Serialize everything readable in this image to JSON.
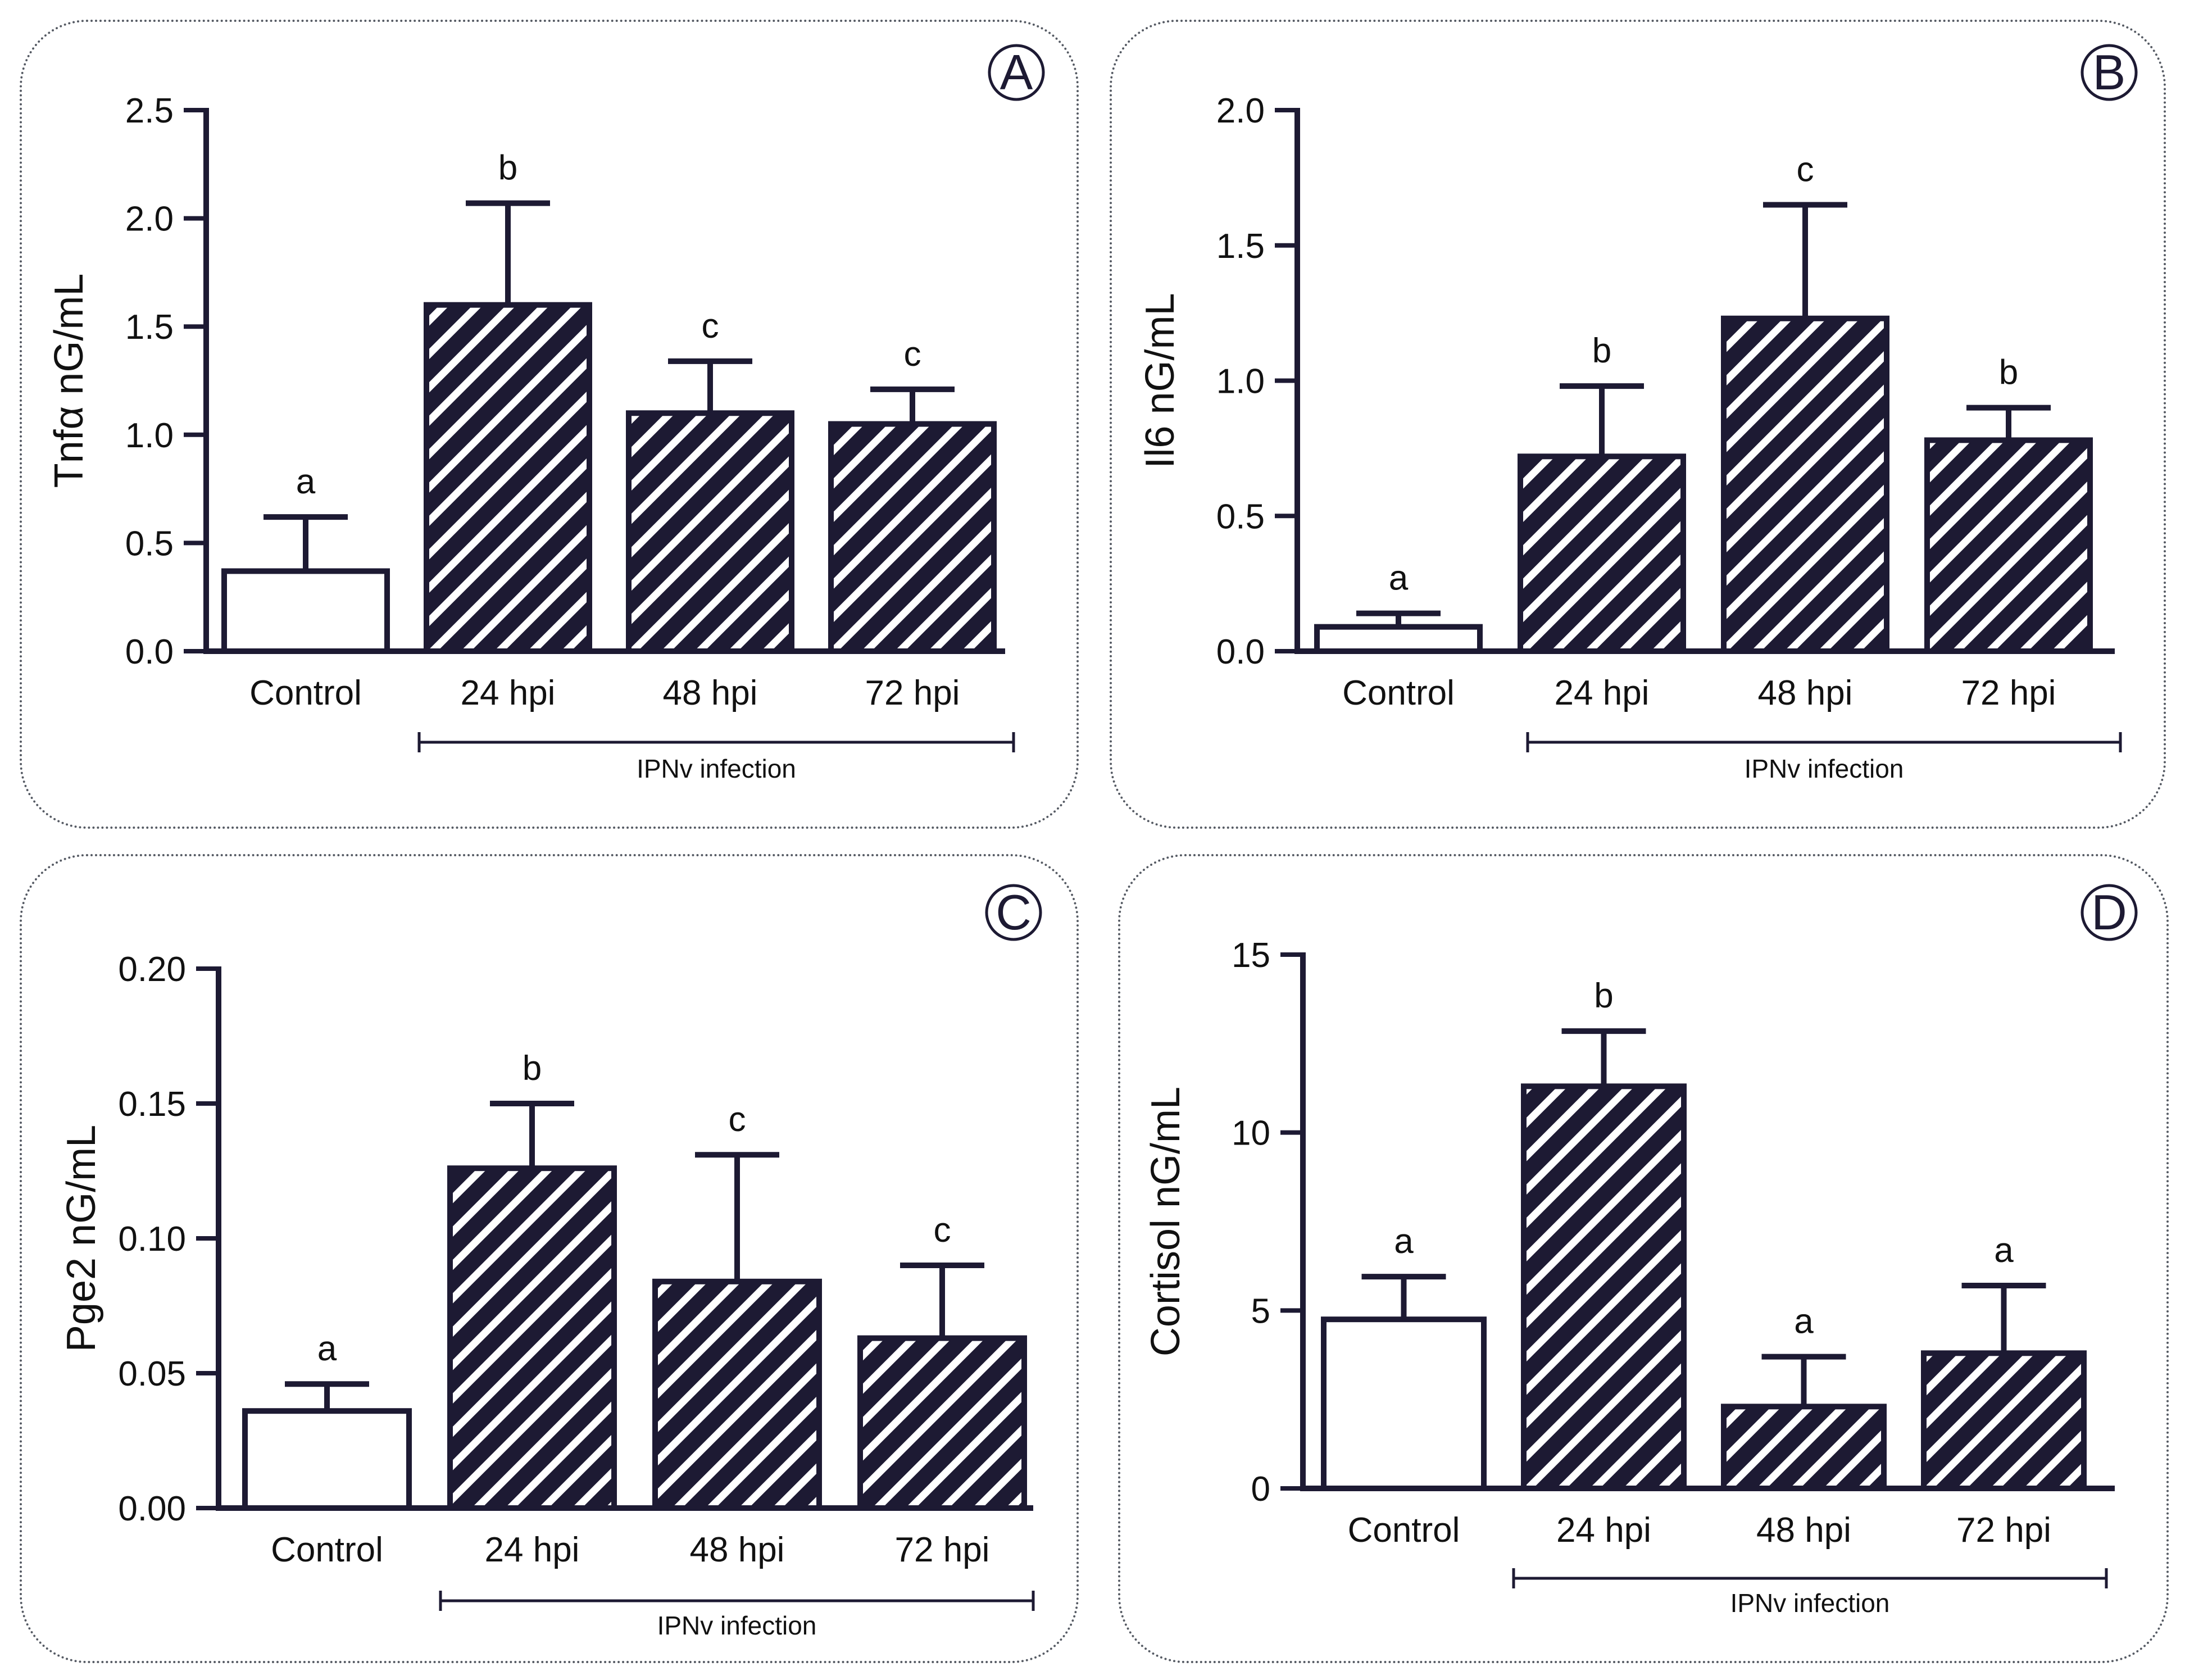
{
  "chart_data": [
    {
      "type": "bar",
      "panel_letter": "A",
      "ylabel": "Tnfα nG/mL",
      "categories": [
        "Control",
        "24 hpi",
        "48 hpi",
        "72 hpi"
      ],
      "values": [
        0.37,
        1.6,
        1.1,
        1.05
      ],
      "errors": [
        0.25,
        0.47,
        0.24,
        0.16
      ],
      "letters": [
        "a",
        "b",
        "c",
        "c"
      ],
      "hatched": [
        false,
        true,
        true,
        true
      ],
      "ylim": [
        0,
        2.5
      ],
      "yticks": [
        0.0,
        0.5,
        1.0,
        1.5,
        2.0,
        2.5
      ],
      "ytick_labels": [
        "0.0",
        "0.5",
        "1.0",
        "1.5",
        "2.0",
        "2.5"
      ],
      "bracket_label": "IPNv infection"
    },
    {
      "type": "bar",
      "panel_letter": "B",
      "ylabel": "Il6 nG/mL",
      "categories": [
        "Control",
        "24 hpi",
        "48 hpi",
        "72 hpi"
      ],
      "values": [
        0.09,
        0.72,
        1.23,
        0.78
      ],
      "errors": [
        0.05,
        0.26,
        0.42,
        0.12
      ],
      "letters": [
        "a",
        "b",
        "c",
        "b"
      ],
      "hatched": [
        false,
        true,
        true,
        true
      ],
      "ylim": [
        0,
        2.0
      ],
      "yticks": [
        0.0,
        0.5,
        1.0,
        1.5,
        2.0
      ],
      "ytick_labels": [
        "0.0",
        "0.5",
        "1.0",
        "1.5",
        "2.0"
      ],
      "bracket_label": "IPNv infection"
    },
    {
      "type": "bar",
      "panel_letter": "C",
      "ylabel": "Pge2 nG/mL",
      "categories": [
        "Control",
        "24 hpi",
        "48 hpi",
        "72 hpi"
      ],
      "values": [
        0.036,
        0.126,
        0.084,
        0.063
      ],
      "errors": [
        0.01,
        0.024,
        0.047,
        0.027
      ],
      "letters": [
        "a",
        "b",
        "c",
        "c"
      ],
      "hatched": [
        false,
        true,
        true,
        true
      ],
      "ylim": [
        0,
        0.2
      ],
      "yticks": [
        0.0,
        0.05,
        0.1,
        0.15,
        0.2
      ],
      "ytick_labels": [
        "0.00",
        "0.05",
        "0.10",
        "0.15",
        "0.20"
      ],
      "bracket_label": "IPNv infection"
    },
    {
      "type": "bar",
      "panel_letter": "D",
      "ylabel": "Cortisol nG/mL",
      "categories": [
        "Control",
        "24 hpi",
        "48 hpi",
        "72 hpi"
      ],
      "values": [
        4.75,
        11.3,
        2.3,
        3.8
      ],
      "errors": [
        1.2,
        1.55,
        1.4,
        1.9
      ],
      "letters": [
        "a",
        "b",
        "a",
        "a"
      ],
      "hatched": [
        false,
        true,
        true,
        true
      ],
      "ylim": [
        0,
        15
      ],
      "yticks": [
        0,
        5,
        10,
        15
      ],
      "ytick_labels": [
        "0",
        "5",
        "10",
        "15"
      ],
      "bracket_label": "IPNv infection"
    }
  ]
}
